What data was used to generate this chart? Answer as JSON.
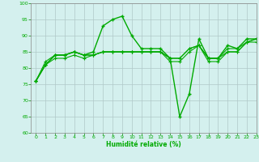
{
  "xlabel": "Humidité relative (%)",
  "xlim": [
    -0.5,
    23
  ],
  "ylim": [
    60,
    100
  ],
  "xticks": [
    0,
    1,
    2,
    3,
    4,
    5,
    6,
    7,
    8,
    9,
    10,
    11,
    12,
    13,
    14,
    15,
    16,
    17,
    18,
    19,
    20,
    21,
    22,
    23
  ],
  "yticks": [
    60,
    65,
    70,
    75,
    80,
    85,
    90,
    95,
    100
  ],
  "background_color": "#d4f0ee",
  "grid_color": "#b0c8c8",
  "line_color": "#00aa00",
  "lines": [
    [
      76,
      81,
      84,
      84,
      85,
      84,
      85,
      93,
      95,
      96,
      90,
      86,
      86,
      86,
      83,
      65,
      72,
      89,
      83,
      83,
      87,
      86,
      89,
      89
    ],
    [
      76,
      81,
      83,
      83,
      84,
      83,
      84,
      85,
      85,
      85,
      85,
      85,
      85,
      85,
      83,
      83,
      86,
      87,
      83,
      83,
      85,
      85,
      88,
      88
    ],
    [
      76,
      81,
      84,
      84,
      85,
      84,
      84,
      85,
      85,
      85,
      85,
      85,
      85,
      85,
      83,
      83,
      86,
      87,
      83,
      83,
      86,
      86,
      88,
      89
    ],
    [
      76,
      82,
      84,
      84,
      85,
      84,
      84,
      85,
      85,
      85,
      85,
      85,
      85,
      85,
      82,
      82,
      85,
      87,
      82,
      82,
      85,
      85,
      88,
      89
    ]
  ],
  "line_styles": [
    {
      "lw": 1.0,
      "marker": "+",
      "ms": 3.5,
      "ls": "-",
      "mew": 1.0
    },
    {
      "lw": 0.8,
      "marker": "+",
      "ms": 3.0,
      "ls": "-",
      "mew": 0.8
    },
    {
      "lw": 0.8,
      "marker": "+",
      "ms": 3.0,
      "ls": "-",
      "mew": 0.8
    },
    {
      "lw": 0.8,
      "marker": "+",
      "ms": 3.0,
      "ls": "-",
      "mew": 0.8
    }
  ]
}
